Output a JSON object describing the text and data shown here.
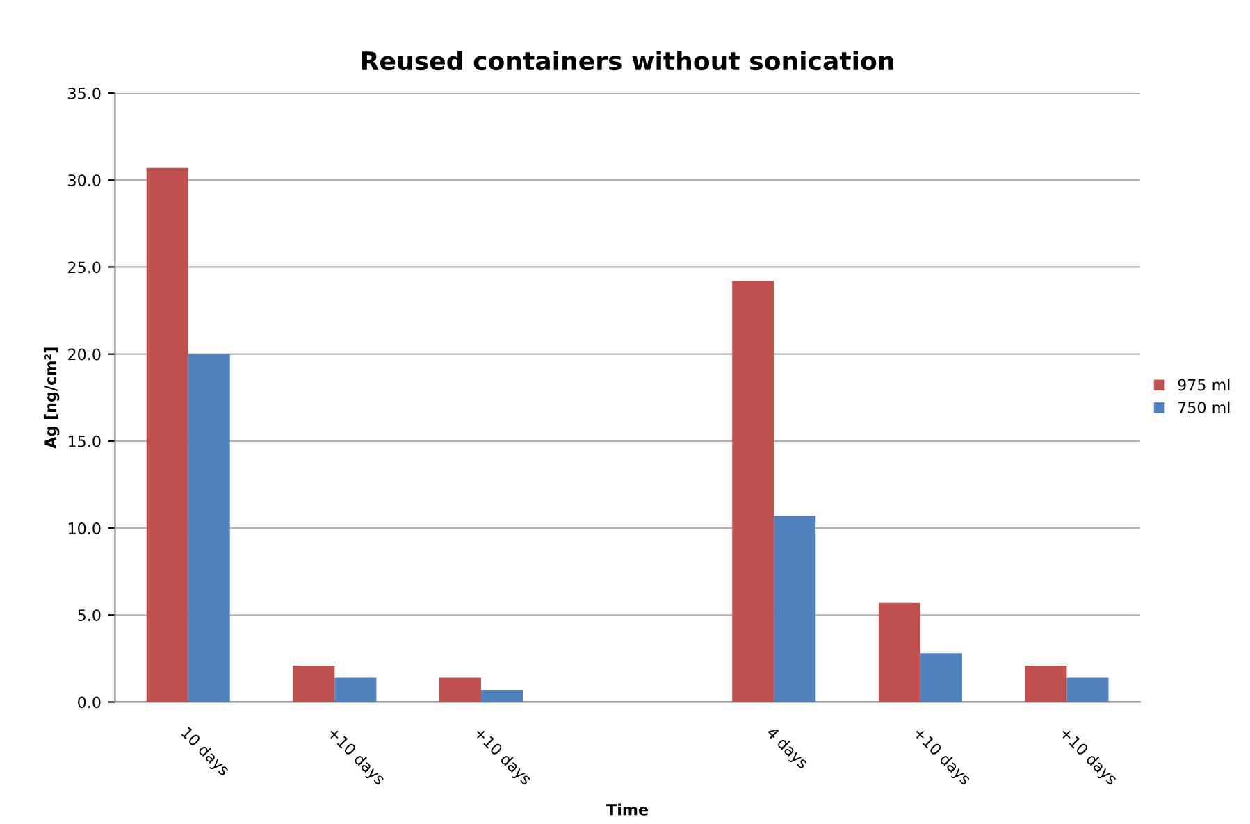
{
  "chart_data": {
    "type": "bar",
    "title": "Reused containers without sonication",
    "xlabel": "Time",
    "ylabel": "Ag [ng/cm²]",
    "categories": [
      "10 days",
      "+10 days",
      "+10 days",
      null,
      "4 days",
      "+10 days",
      "+10 days"
    ],
    "series": [
      {
        "name": "975 ml",
        "color": "#c0504d",
        "values": [
          30.7,
          2.1,
          1.4,
          null,
          24.2,
          5.7,
          2.1
        ]
      },
      {
        "name": "750 ml",
        "color": "#4f81bd",
        "values": [
          20.0,
          1.4,
          0.7,
          null,
          10.7,
          2.8,
          1.4
        ]
      }
    ],
    "ylim": [
      0,
      35
    ],
    "yticks": [
      {
        "value": 0,
        "label": "0.0"
      },
      {
        "value": 5,
        "label": "5.0"
      },
      {
        "value": 10,
        "label": "10.0"
      },
      {
        "value": 15,
        "label": "15.0"
      },
      {
        "value": 20,
        "label": "20.0"
      },
      {
        "value": 25,
        "label": "25.0"
      },
      {
        "value": 30,
        "label": "30.0"
      },
      {
        "value": 35,
        "label": "35.0"
      }
    ],
    "grid": "y",
    "legend": "right"
  }
}
